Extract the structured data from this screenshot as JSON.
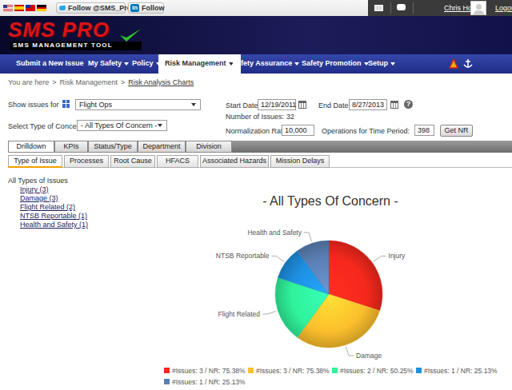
{
  "top_bar": {
    "twitter": "Follow @SMS_Pro",
    "linkedin_icon": "in",
    "linkedin": "Follow",
    "user": "Chris Howell",
    "logout": "Logout"
  },
  "header": {
    "logo": "SMS PRO",
    "logo_subtitle": "SMS MANAGEMENT TOOL"
  },
  "nav": [
    {
      "label": "Submit a New Issue",
      "dropdown": false,
      "active": false
    },
    {
      "label": "My Safety",
      "dropdown": true,
      "active": false
    },
    {
      "label": "Policy",
      "dropdown": true,
      "active": false
    },
    {
      "label": "Risk Management",
      "dropdown": true,
      "active": true
    },
    {
      "label": "Safety Assurance",
      "dropdown": true,
      "active": false
    },
    {
      "label": "Safety Promotion",
      "dropdown": true,
      "active": false
    },
    {
      "label": "Setup",
      "dropdown": true,
      "active": false
    }
  ],
  "breadcrumb": {
    "prefix": "You are here",
    "separator": ">",
    "items": [
      "Risk Management",
      "Risk Analysis Charts"
    ]
  },
  "filters": {
    "show_issues_label": "Show issues for",
    "show_issues_value": "Flight Ops",
    "concern_label": "Select Type of Concern",
    "concern_value": "- All Types Of Concern -",
    "start_label": "Start Date :",
    "start_value": "12/19/2011",
    "end_label": "End Date :",
    "end_value": "8/27/2013",
    "help_icon": "?",
    "issues_label": "Number of Issues:",
    "issues_count": 32,
    "nr_label": "Normalization Rate:",
    "nr_value": "10,000",
    "ops_label": "Operations for Time Period:",
    "ops_value": 398,
    "button": "Get NR"
  },
  "tabs": [
    {
      "label": "Drilldown",
      "active": true
    },
    {
      "label": "KPIs",
      "active": false
    },
    {
      "label": "Status/Type",
      "active": false
    },
    {
      "label": "Department",
      "active": false
    },
    {
      "label": "Division",
      "active": false
    }
  ],
  "subtabs": [
    {
      "label": "Type of Issue",
      "active": true
    },
    {
      "label": "Processes",
      "active": false
    },
    {
      "label": "Root Cause",
      "active": false
    },
    {
      "label": "HFACS",
      "active": false
    },
    {
      "label": "Associated Hazards",
      "active": false
    },
    {
      "label": "Mission Delays",
      "active": false
    }
  ],
  "issue_list": {
    "title": "All Types of Issues",
    "items": [
      "Injury (3)",
      "Damage (3)",
      "Flight Related (2)",
      "NTSB Reportable (1)",
      "Health and Safety (1)"
    ]
  },
  "chart_data": {
    "type": "pie",
    "title": "- All Types Of Concern -",
    "categories": [
      "Injury",
      "Damage",
      "Flight Related",
      "NTSB Reportable",
      "Health and Safety"
    ],
    "values": [
      3,
      3,
      2,
      1,
      1
    ],
    "colors": [
      "#f5281c",
      "#fbbf2c",
      "#2ff29a",
      "#1e8fe0",
      "#5b7fb3"
    ],
    "legend": "bottom",
    "legend_labels": [
      "#Issues: 3 / NR: 75.38%",
      "#Issues: 3 / NR: 75.38%",
      "#Issues: 2 / NR: 50.25%",
      "#Issues: 1 / NR: 25.13%",
      "#Issues: 1 / NR: 25.13%"
    ]
  }
}
